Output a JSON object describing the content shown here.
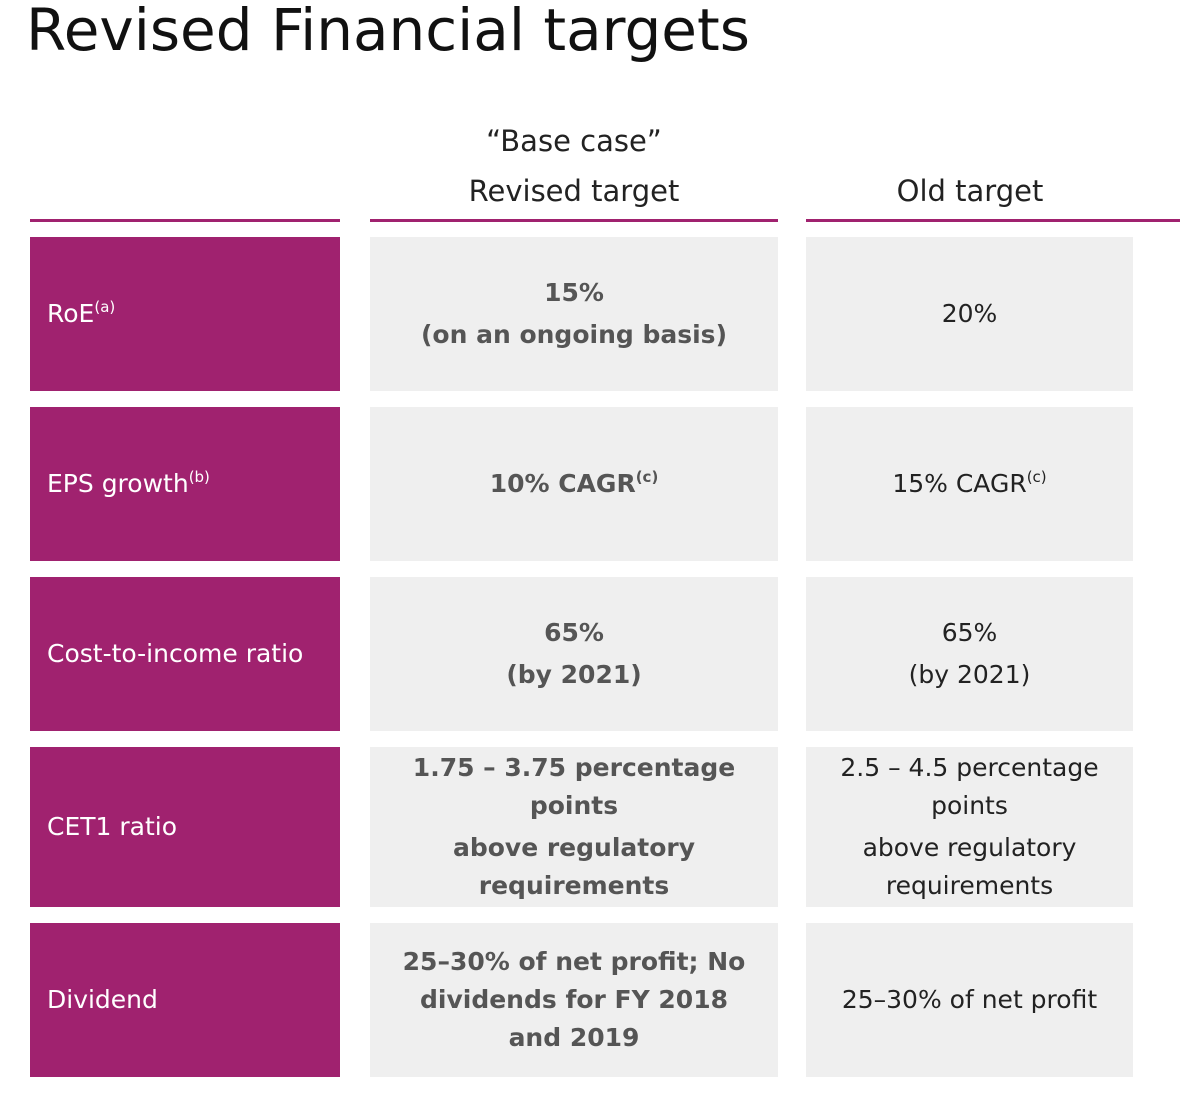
{
  "header": {
    "title": "Revised Financial targets",
    "columns": [
      {
        "lines": [
          "“Base case”",
          "Revised target"
        ]
      },
      {
        "lines": [
          "Old target"
        ]
      }
    ]
  },
  "table": {
    "rows": [
      {
        "label": "RoE",
        "label_sup": "(a)",
        "revised": [
          "15%",
          "(on an ongoing basis)"
        ],
        "old": [
          "20%"
        ]
      },
      {
        "label": "EPS growth",
        "label_sup": "(b)",
        "revised": [
          "10% CAGR"
        ],
        "revised_sup": "(c)",
        "old": [
          "15% CAGR"
        ],
        "old_sup": "(c)"
      },
      {
        "label": "Cost-to-income ratio",
        "revised": [
          "65%",
          "(by 2021)"
        ],
        "old": [
          "65%",
          "(by 2021)"
        ]
      },
      {
        "label": "CET1 ratio",
        "revised": [
          "1.75 – 3.75 percentage points",
          "above regulatory requirements"
        ],
        "old": [
          "2.5 – 4.5 percentage points",
          "above regulatory requirements"
        ]
      },
      {
        "label": "Dividend",
        "revised": [
          "25–30% of net profit; No dividends for FY 2018 and 2019"
        ],
        "old": [
          "25–30% of net profit"
        ]
      }
    ]
  }
}
